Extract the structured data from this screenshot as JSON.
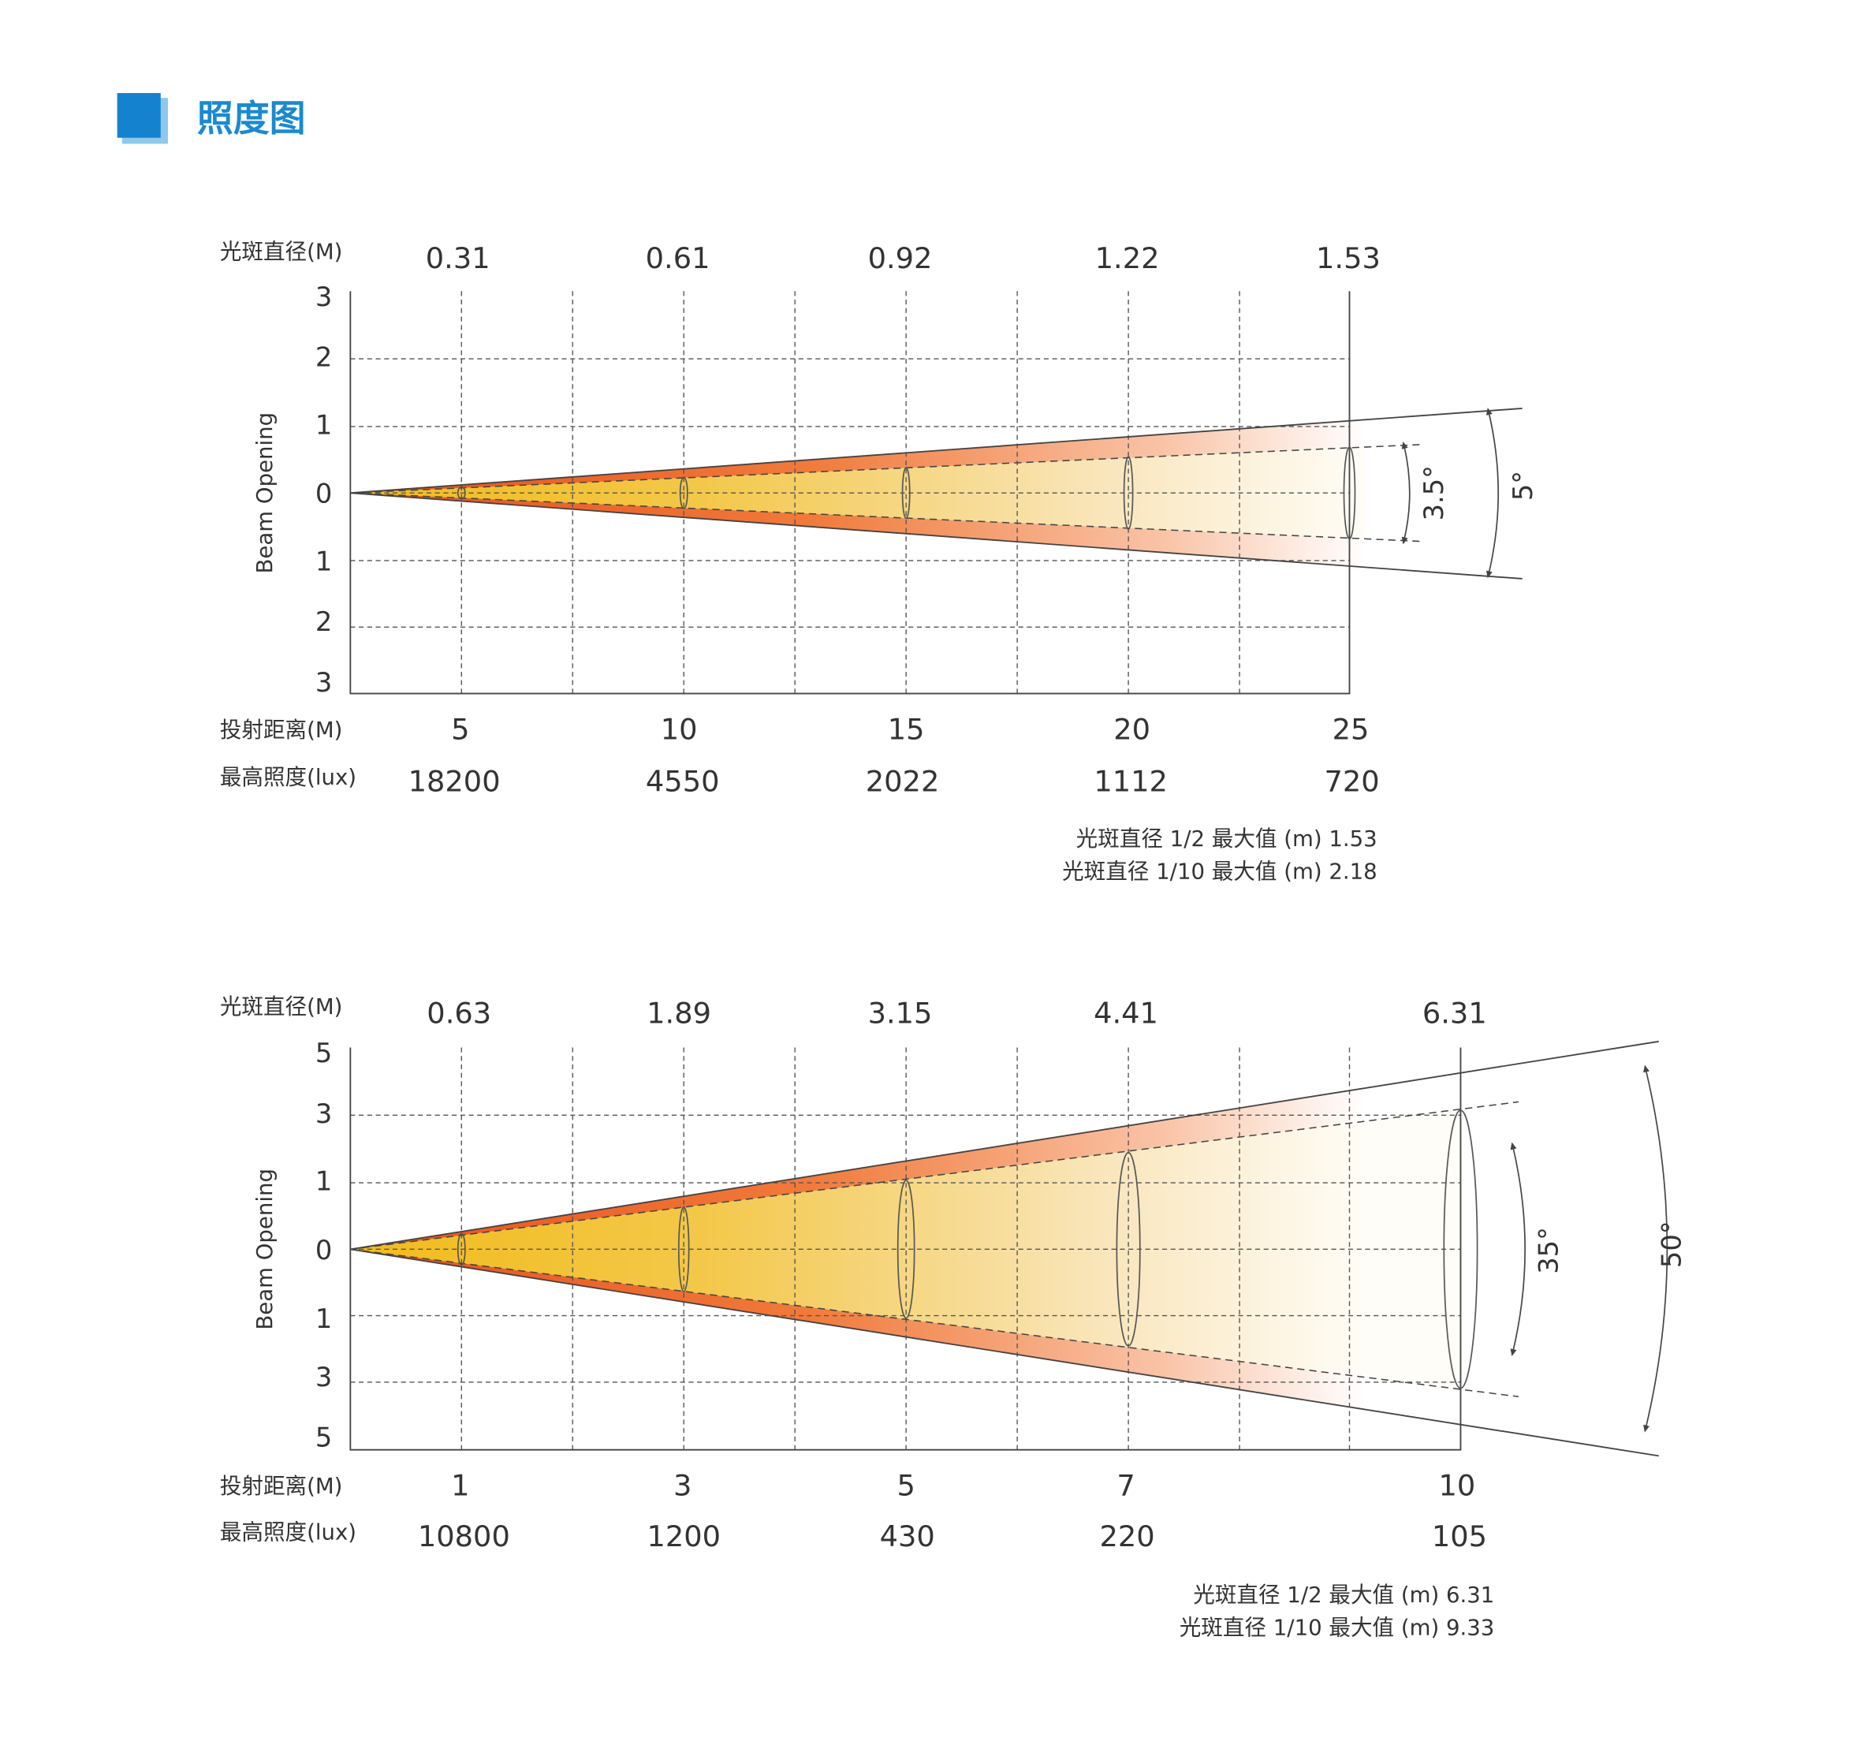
{
  "header": {
    "title": "照度图"
  },
  "diagrams": [
    {
      "spot_label": "光斑直径(M)",
      "spot_diameters": [
        "0.31",
        "0.61",
        "0.92",
        "1.22",
        "1.53"
      ],
      "y_axis_label": "Beam Opening",
      "y_ticks": [
        "3",
        "2",
        "1",
        "0",
        "1",
        "2",
        "3"
      ],
      "distance_label": "投射距离(M)",
      "distances": [
        "5",
        "10",
        "15",
        "20",
        "25"
      ],
      "lux_label": "最高照度(lux)",
      "lux": [
        "18200",
        "4550",
        "2022",
        "1112",
        "720"
      ],
      "angles": [
        "3.5°",
        "5°"
      ],
      "notes": [
        "光斑直径 1/2 最大值 (m) 1.53",
        "光斑直径 1/10 最大值 (m) 2.18"
      ]
    },
    {
      "spot_label": "光斑直径(M)",
      "spot_diameters": [
        "0.63",
        "1.89",
        "3.15",
        "4.41",
        "6.31"
      ],
      "y_axis_label": "Beam Opening",
      "y_ticks": [
        "5",
        "3",
        "1",
        "0",
        "1",
        "3",
        "5"
      ],
      "distance_label": "投射距离(M)",
      "distances": [
        "1",
        "3",
        "5",
        "7",
        "10"
      ],
      "lux_label": "最高照度(lux)",
      "lux": [
        "10800",
        "1200",
        "430",
        "220",
        "105"
      ],
      "angles": [
        "35°",
        "50°"
      ],
      "notes": [
        "光斑直径 1/2 最大值 (m) 6.31",
        "光斑直径 1/10 最大值 (m) 9.33"
      ]
    }
  ]
}
